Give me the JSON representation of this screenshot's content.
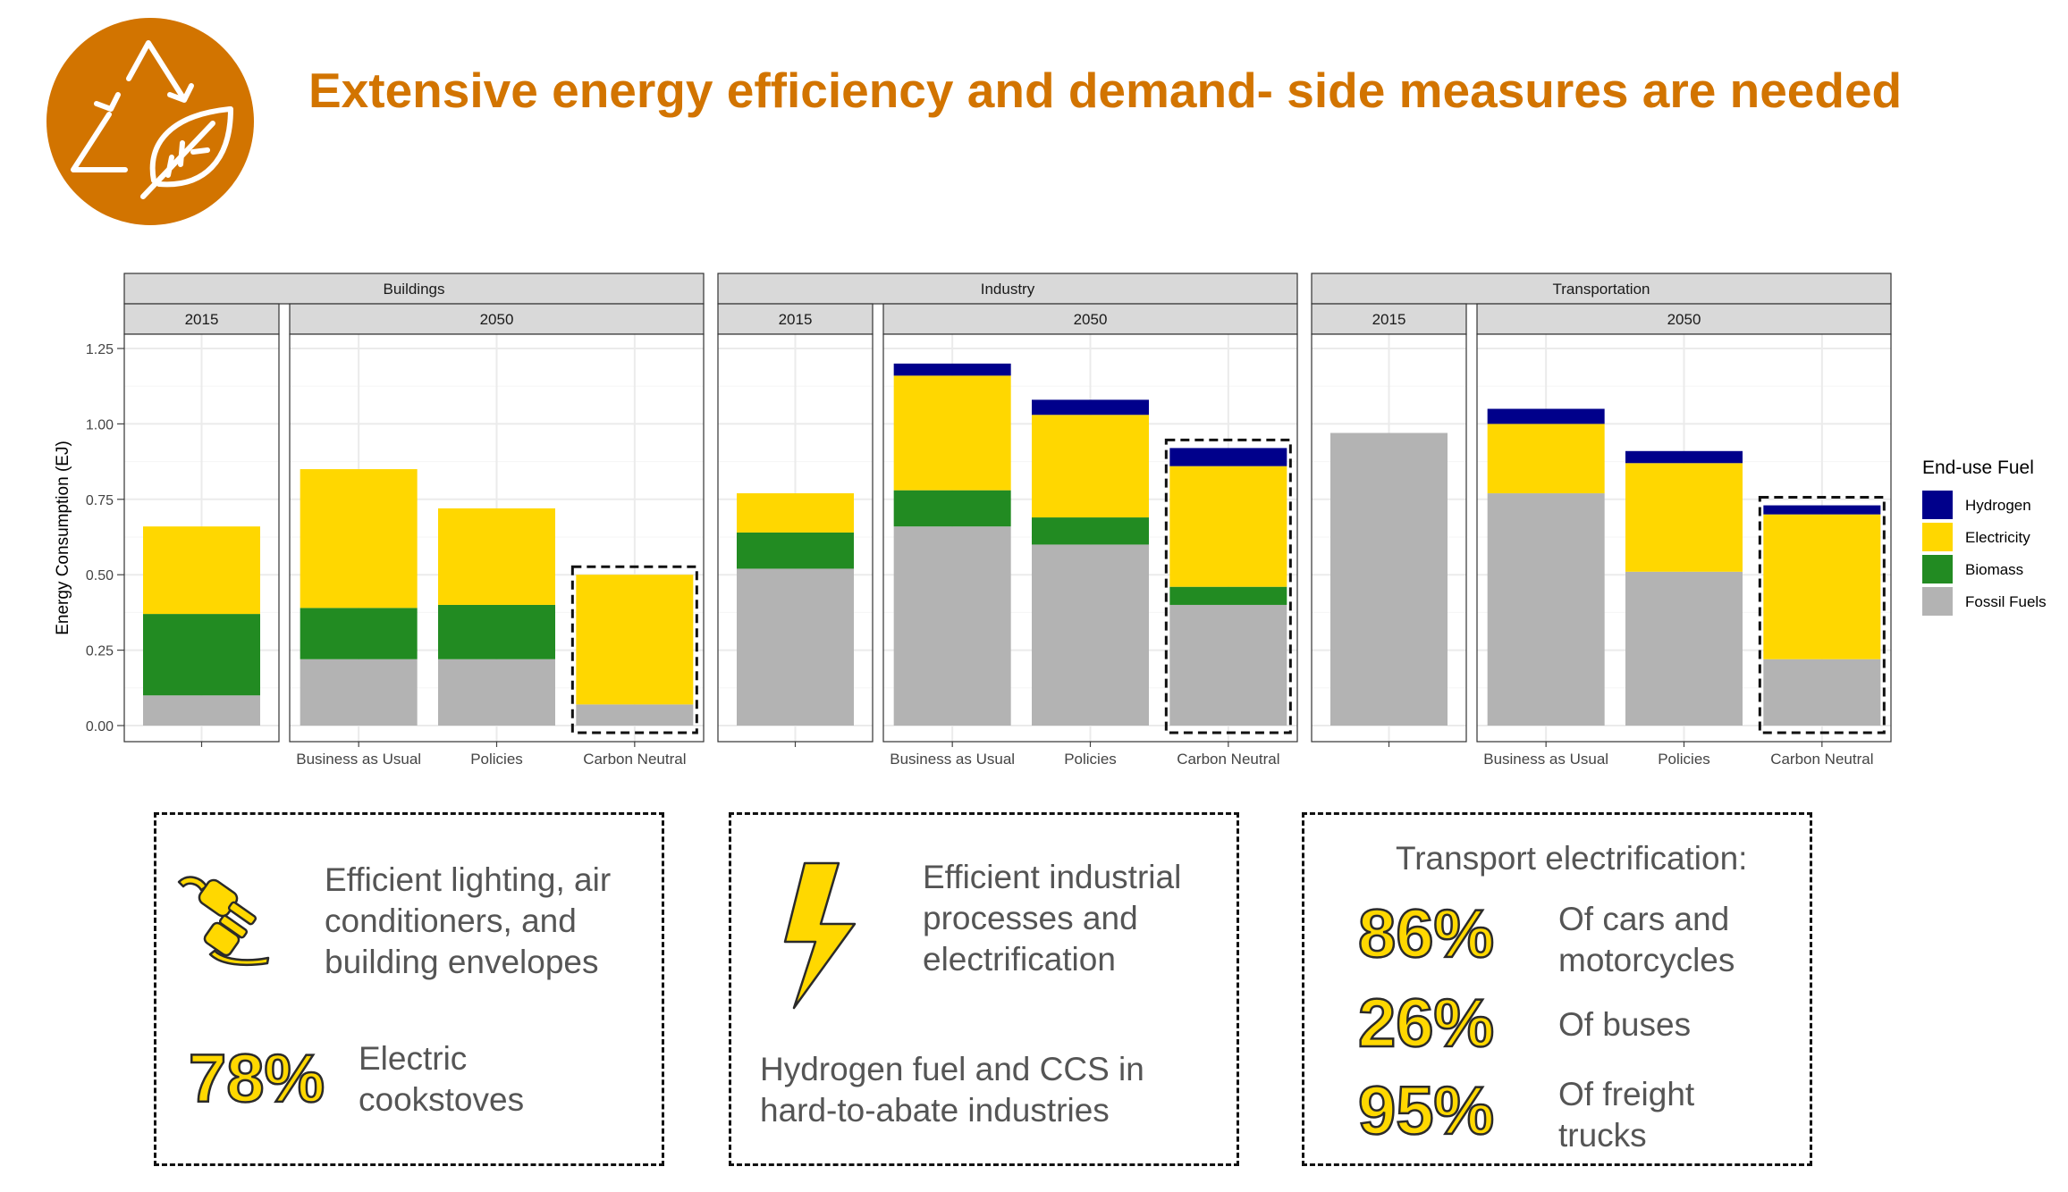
{
  "header": {
    "title": "Extensive energy efficiency and demand- side measures are needed",
    "logo_icon": "recycle-leaf-icon",
    "brand_color": "#D27400"
  },
  "chart_data": {
    "type": "bar",
    "stacked": true,
    "ylabel": "Energy Consumption (EJ)",
    "ylim": [
      0,
      1.25
    ],
    "yticks": [
      "0.00",
      "0.25",
      "0.50",
      "0.75",
      "1.00",
      "1.25"
    ],
    "grid": true,
    "legend_title": "End-use Fuel",
    "legend_placement": "right",
    "legend": [
      {
        "name": "Hydrogen",
        "color": "#00008B"
      },
      {
        "name": "Electricity",
        "color": "#FFD700"
      },
      {
        "name": "Biomass",
        "color": "#228B22"
      },
      {
        "name": "Fossil Fuels",
        "color": "#B3B3B3"
      }
    ],
    "series_order": [
      "Fossil Fuels",
      "Biomass",
      "Electricity",
      "Hydrogen"
    ],
    "highlighted_scenario": "Carbon Neutral",
    "facets": [
      {
        "sector": "Buildings",
        "panels": [
          {
            "year": "2015",
            "bars": [
              {
                "label": "",
                "values": [
                  0.1,
                  0.27,
                  0.29,
                  0
                ]
              }
            ]
          },
          {
            "year": "2050",
            "bars": [
              {
                "label": "Business as Usual",
                "values": [
                  0.22,
                  0.17,
                  0.46,
                  0
                ]
              },
              {
                "label": "Policies",
                "values": [
                  0.22,
                  0.18,
                  0.32,
                  0
                ]
              },
              {
                "label": "Carbon Neutral",
                "values": [
                  0.07,
                  0,
                  0.43,
                  0
                ]
              }
            ]
          }
        ]
      },
      {
        "sector": "Industry",
        "panels": [
          {
            "year": "2015",
            "bars": [
              {
                "label": "",
                "values": [
                  0.52,
                  0.12,
                  0.13,
                  0
                ]
              }
            ]
          },
          {
            "year": "2050",
            "bars": [
              {
                "label": "Business as Usual",
                "values": [
                  0.66,
                  0.12,
                  0.38,
                  0.04
                ]
              },
              {
                "label": "Policies",
                "values": [
                  0.6,
                  0.09,
                  0.34,
                  0.05
                ]
              },
              {
                "label": "Carbon Neutral",
                "values": [
                  0.4,
                  0.06,
                  0.4,
                  0.06
                ]
              }
            ]
          }
        ]
      },
      {
        "sector": "Transportation",
        "panels": [
          {
            "year": "2015",
            "bars": [
              {
                "label": "",
                "values": [
                  0.97,
                  0,
                  0,
                  0
                ]
              }
            ]
          },
          {
            "year": "2050",
            "bars": [
              {
                "label": "Business as Usual",
                "values": [
                  0.77,
                  0,
                  0.23,
                  0.05
                ]
              },
              {
                "label": "Policies",
                "values": [
                  0.51,
                  0,
                  0.36,
                  0.04
                ]
              },
              {
                "label": "Carbon Neutral",
                "values": [
                  0.22,
                  0,
                  0.48,
                  0.03
                ]
              }
            ]
          }
        ]
      }
    ]
  },
  "boxes": {
    "buildings": {
      "icon": "electric-plug-icon",
      "text_lines": [
        "Efficient lighting, air",
        "conditioners, and",
        "building envelopes"
      ],
      "stat": "78%",
      "stat_label_lines": [
        "Electric",
        "cookstoves"
      ]
    },
    "industry": {
      "icon": "lightning-bolt-icon",
      "text_lines": [
        "Efficient industrial",
        "processes and",
        "electrification"
      ],
      "text2_lines": [
        "Hydrogen fuel and CCS in",
        "hard-to-abate industries"
      ]
    },
    "transport": {
      "heading": "Transport electrification:",
      "stats": [
        {
          "value": "86%",
          "label_lines": [
            "Of cars and",
            "motorcycles"
          ]
        },
        {
          "value": "26%",
          "label_lines": [
            "Of buses"
          ]
        },
        {
          "value": "95%",
          "label_lines": [
            "Of freight",
            "trucks"
          ]
        }
      ]
    }
  }
}
